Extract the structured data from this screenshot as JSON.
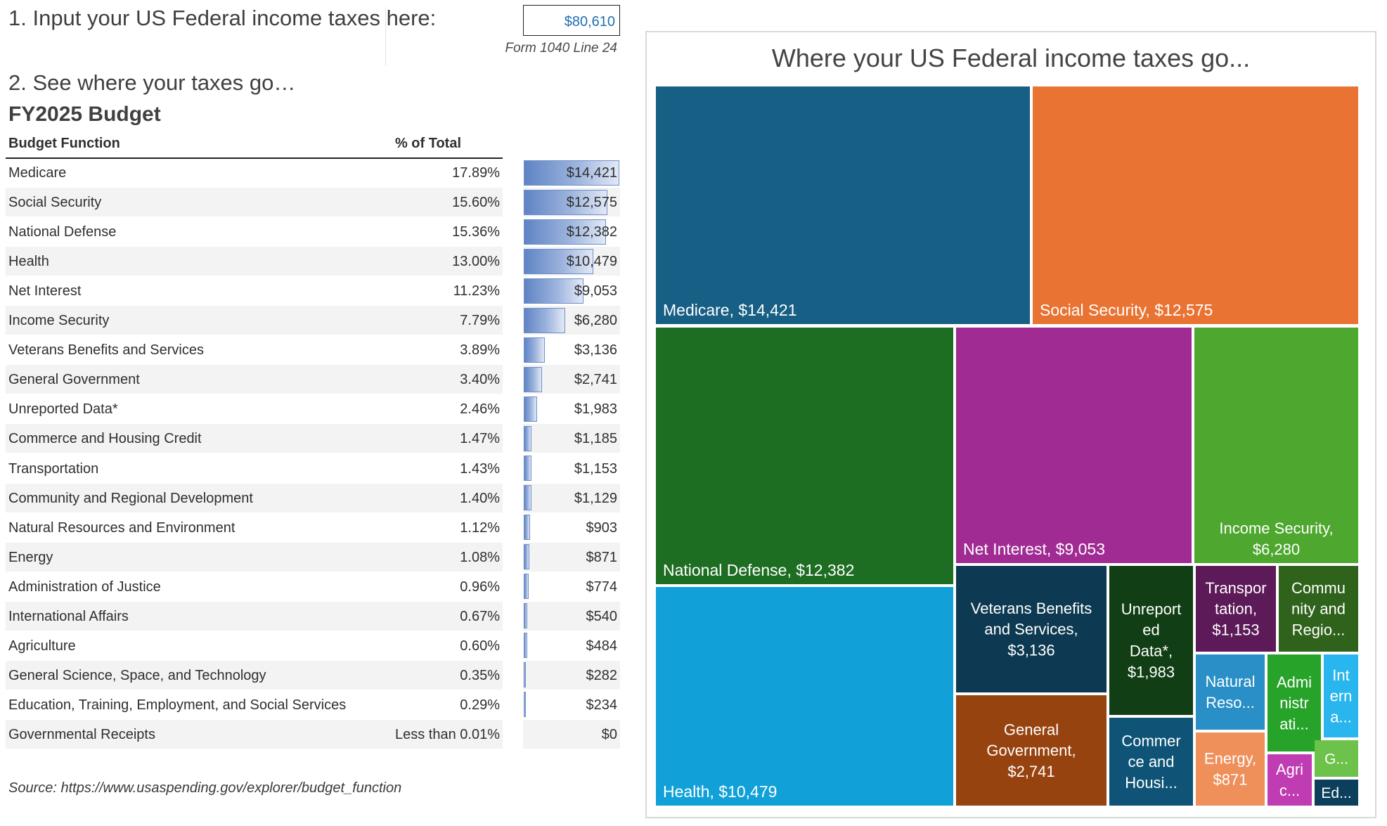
{
  "inputs": {
    "step1_label": "1. Input your US Federal income taxes here:",
    "tax_value": "$80,610",
    "form_note": "Form 1040 Line 24"
  },
  "table": {
    "step2_label": "2. See where your taxes go…",
    "fy_label": "FY2025 Budget",
    "col_function": "Budget Function",
    "col_pct": "% of Total",
    "rows": [
      {
        "name": "Medicare",
        "pct": "17.89%",
        "amount": "$14,421",
        "value": 14421
      },
      {
        "name": "Social Security",
        "pct": "15.60%",
        "amount": "$12,575",
        "value": 12575
      },
      {
        "name": "National Defense",
        "pct": "15.36%",
        "amount": "$12,382",
        "value": 12382
      },
      {
        "name": "Health",
        "pct": "13.00%",
        "amount": "$10,479",
        "value": 10479
      },
      {
        "name": "Net Interest",
        "pct": "11.23%",
        "amount": "$9,053",
        "value": 9053
      },
      {
        "name": "Income Security",
        "pct": "7.79%",
        "amount": "$6,280",
        "value": 6280
      },
      {
        "name": "Veterans Benefits and Services",
        "pct": "3.89%",
        "amount": "$3,136",
        "value": 3136
      },
      {
        "name": "General Government",
        "pct": "3.40%",
        "amount": "$2,741",
        "value": 2741
      },
      {
        "name": "Unreported Data*",
        "pct": "2.46%",
        "amount": "$1,983",
        "value": 1983
      },
      {
        "name": "Commerce and Housing Credit",
        "pct": "1.47%",
        "amount": "$1,185",
        "value": 1185
      },
      {
        "name": "Transportation",
        "pct": "1.43%",
        "amount": "$1,153",
        "value": 1153
      },
      {
        "name": "Community and Regional Development",
        "pct": "1.40%",
        "amount": "$1,129",
        "value": 1129
      },
      {
        "name": "Natural Resources and Environment",
        "pct": "1.12%",
        "amount": "$903",
        "value": 903
      },
      {
        "name": "Energy",
        "pct": "1.08%",
        "amount": "$871",
        "value": 871
      },
      {
        "name": "Administration of Justice",
        "pct": "0.96%",
        "amount": "$774",
        "value": 774
      },
      {
        "name": "International Affairs",
        "pct": "0.67%",
        "amount": "$540",
        "value": 540
      },
      {
        "name": "Agriculture",
        "pct": "0.60%",
        "amount": "$484",
        "value": 484
      },
      {
        "name": "General Science, Space, and Technology",
        "pct": "0.35%",
        "amount": "$282",
        "value": 282
      },
      {
        "name": "Education, Training, Employment, and Social Services",
        "pct": "0.29%",
        "amount": "$234",
        "value": 234
      },
      {
        "name": "Governmental Receipts",
        "pct": "Less than 0.01%",
        "amount": "$0",
        "value": 0
      }
    ],
    "source": "Source: https://www.usaspending.gov/explorer/budget_function"
  },
  "chart_data": {
    "type": "treemap",
    "title": "Where your US Federal income taxes go...",
    "items": [
      {
        "name": "Medicare",
        "value": 14421,
        "label_lines": [
          "Medicare, $14,421"
        ],
        "color": "#175f84"
      },
      {
        "name": "Social Security",
        "value": 12575,
        "label_lines": [
          "Social Security, $12,575"
        ],
        "color": "#e97333"
      },
      {
        "name": "National Defense",
        "value": 12382,
        "label_lines": [
          "National Defense, $12,382"
        ],
        "color": "#1d6e23"
      },
      {
        "name": "Health",
        "value": 10479,
        "label_lines": [
          "Health, $10,479"
        ],
        "color": "#11a1d8"
      },
      {
        "name": "Net Interest",
        "value": 9053,
        "label_lines": [
          "Net Interest, $9,053"
        ],
        "color": "#a02b93"
      },
      {
        "name": "Income Security",
        "value": 6280,
        "label_lines": [
          "Income Security,",
          "$6,280"
        ],
        "color": "#4ea72e"
      },
      {
        "name": "Veterans Benefits and Services",
        "value": 3136,
        "label_lines": [
          "Veterans Benefits",
          "and Services,",
          "$3,136"
        ],
        "color": "#0d3a52"
      },
      {
        "name": "General Government",
        "value": 2741,
        "label_lines": [
          "General",
          "Government,",
          "$2,741"
        ],
        "color": "#97430f"
      },
      {
        "name": "Unreported Data*",
        "value": 1983,
        "label_lines": [
          "Unreport",
          "ed",
          "Data*,",
          "$1,983"
        ],
        "color": "#113e14"
      },
      {
        "name": "Commerce and Housing Credit",
        "value": 1185,
        "label_lines": [
          "Commer",
          "ce and",
          "Housi..."
        ],
        "color": "#0f5477"
      },
      {
        "name": "Transportation",
        "value": 1153,
        "label_lines": [
          "Transpor",
          "tation,",
          "$1,153"
        ],
        "color": "#5d1a58"
      },
      {
        "name": "Community and Regional Development",
        "value": 1129,
        "label_lines": [
          "Commu",
          "nity and",
          "Regio..."
        ],
        "color": "#2f631c"
      },
      {
        "name": "Natural Resources and Environment",
        "value": 903,
        "label_lines": [
          "Natural",
          "Reso..."
        ],
        "color": "#2a8fc6"
      },
      {
        "name": "Energy",
        "value": 871,
        "label_lines": [
          "Energy,",
          "$871"
        ],
        "color": "#ef905b"
      },
      {
        "name": "Administration of Justice",
        "value": 774,
        "label_lines": [
          "Admi",
          "nistr",
          "ati..."
        ],
        "color": "#27a32a"
      },
      {
        "name": "International Affairs",
        "value": 540,
        "label_lines": [
          "Int",
          "ern",
          "a..."
        ],
        "color": "#29b6ee"
      },
      {
        "name": "Agriculture",
        "value": 484,
        "label_lines": [
          "Agri",
          "c..."
        ],
        "color": "#bf3cb3"
      },
      {
        "name": "General Science, Space, and Technology",
        "value": 282,
        "label_lines": [
          "G..."
        ],
        "color": "#6cc24a"
      },
      {
        "name": "Education, Training, Employment, and Social Services",
        "value": 234,
        "label_lines": [
          "Ed..."
        ],
        "color": "#0c3f5c"
      }
    ]
  }
}
